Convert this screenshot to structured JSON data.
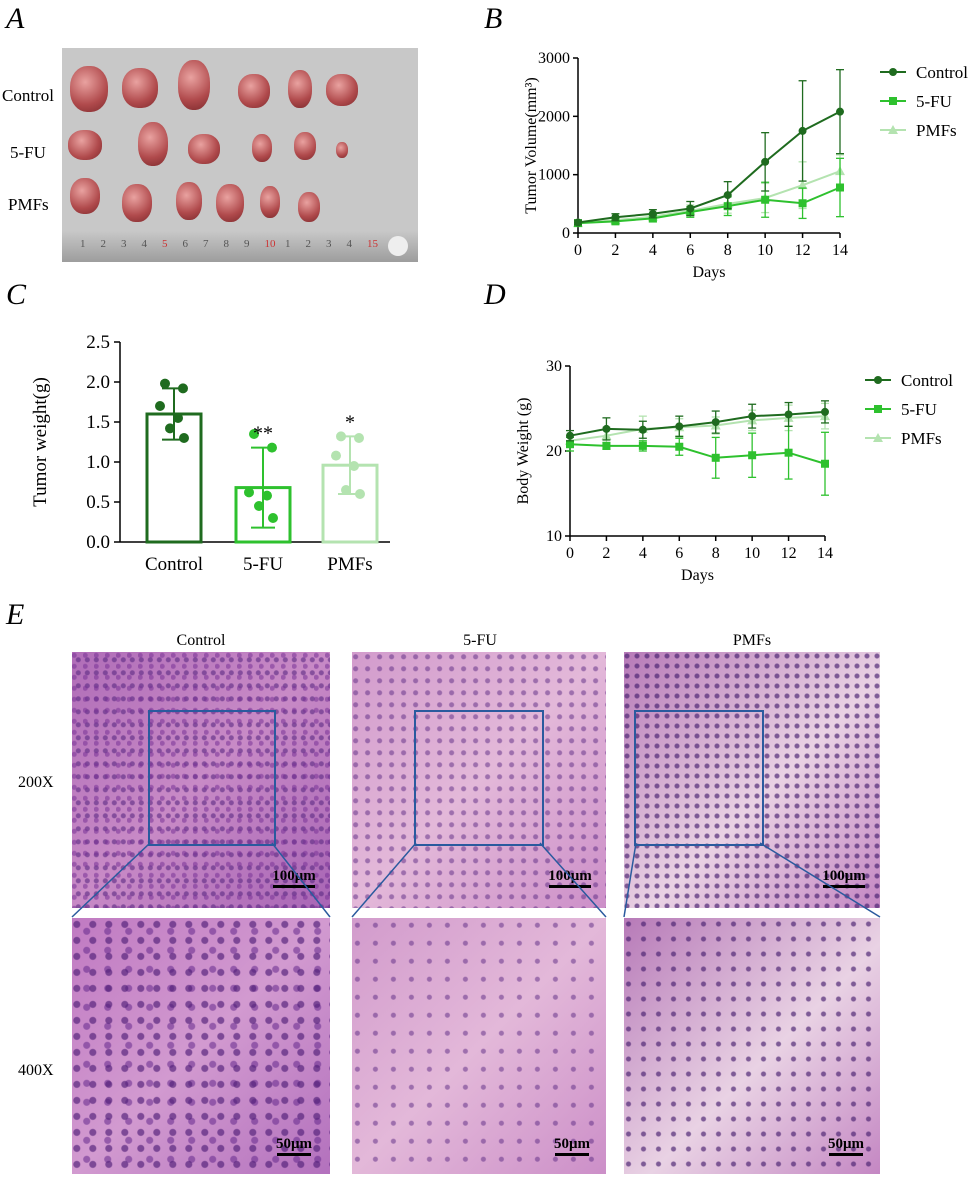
{
  "colors": {
    "control": "#1f6b1f",
    "fu": "#2ec12e",
    "pmfs": "#b4e3b0",
    "box": "#2a5a9e"
  },
  "panels": {
    "A": "A",
    "B": "B",
    "C": "C",
    "D": "D",
    "E": "E"
  },
  "photo": {
    "rows": [
      "Control",
      "5-FU",
      "PMFs"
    ],
    "ruler_numbers": [
      "1",
      "2",
      "3",
      "4",
      "5",
      "6",
      "7",
      "8",
      "9",
      "10",
      "1",
      "2",
      "3",
      "4",
      "15"
    ]
  },
  "histology": {
    "columns": [
      "Control",
      "5-FU",
      "PMFs"
    ],
    "magnifications": [
      "200X",
      "400X"
    ],
    "scale_200": "100μm",
    "scale_400": "50μm"
  },
  "chart_data": [
    {
      "panel": "B",
      "type": "line",
      "xlabel": "Days",
      "ylabel": "Tumor Volume(mm³)",
      "ylim": [
        0,
        3000
      ],
      "x": [
        0,
        2,
        4,
        6,
        8,
        10,
        12,
        14
      ],
      "xticks": [
        "0",
        "2",
        "4",
        "6",
        "8",
        "10",
        "12",
        "14"
      ],
      "yticks": [
        "0",
        "1000",
        "2000",
        "3000"
      ],
      "series": [
        {
          "name": "Control",
          "marker": "circle",
          "values": [
            180,
            270,
            330,
            420,
            650,
            1220,
            1750,
            2080
          ],
          "errors": [
            40,
            60,
            70,
            120,
            230,
            500,
            860,
            720
          ]
        },
        {
          "name": "5-FU",
          "marker": "square",
          "values": [
            170,
            200,
            250,
            360,
            460,
            570,
            510,
            780
          ],
          "errors": [
            40,
            50,
            60,
            90,
            160,
            300,
            260,
            500
          ]
        },
        {
          "name": "PMFs",
          "marker": "triangle",
          "values": [
            170,
            220,
            280,
            380,
            500,
            600,
            820,
            1060
          ],
          "errors": [
            40,
            50,
            70,
            100,
            160,
            250,
            400,
            280
          ]
        }
      ],
      "legend": "top-right"
    },
    {
      "panel": "C",
      "type": "bar",
      "ylabel": "Tumor weight(g)",
      "ylim": [
        0,
        2.5
      ],
      "categories": [
        "Control",
        "5-FU",
        "PMFs"
      ],
      "yticks": [
        "0.0",
        "0.5",
        "1.0",
        "1.5",
        "2.0",
        "2.5"
      ],
      "values": [
        1.6,
        0.68,
        0.96
      ],
      "errors": [
        0.32,
        0.5,
        0.36
      ],
      "points": [
        [
          1.98,
          1.92,
          1.7,
          1.55,
          1.42,
          1.3
        ],
        [
          1.35,
          1.18,
          0.62,
          0.58,
          0.45,
          0.3
        ],
        [
          1.32,
          1.3,
          1.08,
          0.95,
          0.65,
          0.6
        ]
      ],
      "annotations": [
        "",
        "**",
        "*"
      ]
    },
    {
      "panel": "D",
      "type": "line",
      "xlabel": "Days",
      "ylabel": "Body Weight (g)",
      "ylim": [
        10,
        30
      ],
      "x": [
        0,
        2,
        4,
        6,
        8,
        10,
        12,
        14
      ],
      "xticks": [
        "0",
        "2",
        "4",
        "6",
        "8",
        "10",
        "12",
        "14"
      ],
      "yticks": [
        "10",
        "20",
        "30"
      ],
      "series": [
        {
          "name": "Control",
          "marker": "circle",
          "values": [
            21.8,
            22.6,
            22.5,
            22.9,
            23.4,
            24.1,
            24.3,
            24.6
          ],
          "errors": [
            0.6,
            1.3,
            1.0,
            1.2,
            1.3,
            1.4,
            1.4,
            1.3
          ]
        },
        {
          "name": "5-FU",
          "marker": "square",
          "values": [
            20.8,
            20.6,
            20.6,
            20.5,
            19.2,
            19.5,
            19.8,
            18.5
          ],
          "errors": [
            0.8,
            0.4,
            0.6,
            1.0,
            2.4,
            2.6,
            3.1,
            3.7
          ]
        },
        {
          "name": "PMFs",
          "marker": "triangle",
          "values": [
            21.2,
            21.8,
            22.6,
            22.8,
            23.0,
            23.6,
            23.9,
            24.1
          ],
          "errors": [
            0.6,
            1.0,
            1.5,
            1.0,
            1.0,
            1.2,
            1.5,
            1.5
          ]
        }
      ],
      "legend": "top-right"
    }
  ]
}
